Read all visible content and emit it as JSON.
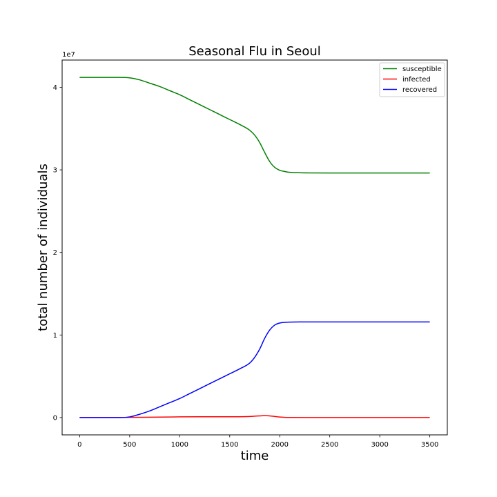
{
  "chart_data": {
    "type": "line",
    "title": "Seasonal Flu in Seoul",
    "xlabel": "time",
    "ylabel": "total number of individuals",
    "y_offset_label": "1e7",
    "xlim": [
      -175,
      3675
    ],
    "ylim": [
      -2100000,
      43300000
    ],
    "x_ticks": [
      0,
      500,
      1000,
      1500,
      2000,
      2500,
      3000,
      3500
    ],
    "x_tick_labels": [
      "0",
      "500",
      "1000",
      "1500",
      "2000",
      "2500",
      "3000",
      "3500"
    ],
    "y_ticks": [
      0,
      10000000,
      20000000,
      30000000,
      40000000
    ],
    "y_tick_labels": [
      "0",
      "1",
      "2",
      "3",
      "4"
    ],
    "grid": false,
    "legend_position": "upper right",
    "series": [
      {
        "name": "susceptible",
        "color": "#008000",
        "x": [
          0,
          200,
          400,
          500,
          600,
          700,
          800,
          900,
          1000,
          1100,
          1200,
          1300,
          1400,
          1500,
          1600,
          1700,
          1750,
          1800,
          1850,
          1900,
          1950,
          2000,
          2050,
          2100,
          2200,
          2300,
          2500,
          3000,
          3500
        ],
        "y": [
          41200000,
          41200000,
          41200000,
          41150000,
          40900000,
          40500000,
          40100000,
          39600000,
          39100000,
          38500000,
          37900000,
          37300000,
          36700000,
          36100000,
          35500000,
          34800000,
          34200000,
          33300000,
          32100000,
          31000000,
          30300000,
          29950000,
          29800000,
          29700000,
          29650000,
          29630000,
          29620000,
          29620000,
          29620000
        ]
      },
      {
        "name": "infected",
        "color": "#ff0000",
        "x": [
          0,
          400,
          500,
          800,
          1000,
          1200,
          1500,
          1650,
          1700,
          1750,
          1800,
          1850,
          1900,
          1950,
          2000,
          2050,
          2100,
          2300,
          2500,
          3000,
          3500
        ],
        "y": [
          0,
          0,
          20000,
          50000,
          80000,
          100000,
          100000,
          110000,
          130000,
          170000,
          200000,
          230000,
          200000,
          130000,
          60000,
          20000,
          10000,
          0,
          0,
          0,
          0
        ]
      },
      {
        "name": "recovered",
        "color": "#0000ff",
        "x": [
          0,
          200,
          400,
          500,
          600,
          700,
          800,
          900,
          1000,
          1100,
          1200,
          1300,
          1400,
          1500,
          1600,
          1700,
          1750,
          1800,
          1850,
          1900,
          1950,
          2000,
          2050,
          2100,
          2200,
          2300,
          2500,
          3000,
          3500
        ],
        "y": [
          0,
          0,
          0,
          80000,
          400000,
          800000,
          1300000,
          1800000,
          2300000,
          2900000,
          3500000,
          4100000,
          4700000,
          5300000,
          5900000,
          6600000,
          7300000,
          8300000,
          9600000,
          10600000,
          11200000,
          11450000,
          11530000,
          11560000,
          11580000,
          11580000,
          11580000,
          11580000,
          11580000
        ]
      }
    ]
  }
}
